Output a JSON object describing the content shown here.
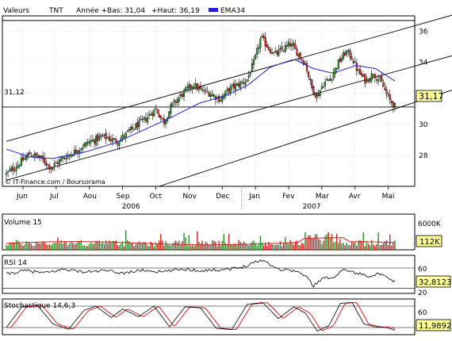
{
  "header": {
    "label_values": "Valeurs",
    "ticker": "TNT",
    "year_low_label": "Année +Bas: 31,04",
    "year_high_label": "+Haut: 36,19",
    "ema_label": "EMA34"
  },
  "colors": {
    "up_candle": "#2e8b2e",
    "down_candle": "#cc2222",
    "ema_line": "#2222cc",
    "volume_avg": "#cc2222",
    "stoch_signal": "#cc2222",
    "grid": "#c8c8c8",
    "price_box_bg": "#ffff99"
  },
  "footer": {
    "credit": "© IT-Finance.com / Boursorama"
  },
  "chart_data": [
    {
      "type": "candlestick",
      "panel": "price",
      "title": "TNT",
      "x_tick_labels": [
        "Jun",
        "Jul",
        "Aou",
        "Sep",
        "Oct",
        "Nov",
        "Dec",
        "Jan",
        "Fev",
        "Mar",
        "Avr",
        "Mai"
      ],
      "x_year_labels": [
        "2006",
        "2007"
      ],
      "y_ticks": [
        "28",
        "30",
        "32",
        "34",
        "36"
      ],
      "ylim": [
        26,
        37
      ],
      "last_price_label": "31,17",
      "level_label": "31,12",
      "level_value": 31.12,
      "close_anchors": [
        {
          "t": 0.0,
          "v": 26.8
        },
        {
          "t": 0.03,
          "v": 27.4
        },
        {
          "t": 0.06,
          "v": 28.1
        },
        {
          "t": 0.09,
          "v": 27.8
        },
        {
          "t": 0.115,
          "v": 27.2
        },
        {
          "t": 0.145,
          "v": 27.8
        },
        {
          "t": 0.18,
          "v": 28.3
        },
        {
          "t": 0.215,
          "v": 28.9
        },
        {
          "t": 0.25,
          "v": 29.2
        },
        {
          "t": 0.285,
          "v": 28.9
        },
        {
          "t": 0.32,
          "v": 29.6
        },
        {
          "t": 0.355,
          "v": 30.3
        },
        {
          "t": 0.385,
          "v": 31.0
        },
        {
          "t": 0.405,
          "v": 30.1
        },
        {
          "t": 0.425,
          "v": 31.2
        },
        {
          "t": 0.455,
          "v": 32.0
        },
        {
          "t": 0.48,
          "v": 32.6
        },
        {
          "t": 0.5,
          "v": 32.2
        },
        {
          "t": 0.525,
          "v": 32.0
        },
        {
          "t": 0.55,
          "v": 31.6
        },
        {
          "t": 0.575,
          "v": 32.3
        },
        {
          "t": 0.6,
          "v": 32.6
        },
        {
          "t": 0.62,
          "v": 32.9
        },
        {
          "t": 0.64,
          "v": 34.2
        },
        {
          "t": 0.655,
          "v": 35.6
        },
        {
          "t": 0.67,
          "v": 35.1
        },
        {
          "t": 0.69,
          "v": 34.5
        },
        {
          "t": 0.71,
          "v": 34.8
        },
        {
          "t": 0.73,
          "v": 35.2
        },
        {
          "t": 0.75,
          "v": 34.6
        },
        {
          "t": 0.77,
          "v": 33.9
        },
        {
          "t": 0.785,
          "v": 32.4
        },
        {
          "t": 0.8,
          "v": 31.8
        },
        {
          "t": 0.815,
          "v": 32.6
        },
        {
          "t": 0.835,
          "v": 33.0
        },
        {
          "t": 0.855,
          "v": 34.0
        },
        {
          "t": 0.875,
          "v": 34.7
        },
        {
          "t": 0.89,
          "v": 34.3
        },
        {
          "t": 0.905,
          "v": 33.4
        },
        {
          "t": 0.925,
          "v": 32.8
        },
        {
          "t": 0.945,
          "v": 33.3
        },
        {
          "t": 0.965,
          "v": 32.7
        },
        {
          "t": 0.985,
          "v": 31.6
        },
        {
          "t": 1.0,
          "v": 31.17
        }
      ],
      "ema_anchors": [
        {
          "t": 0.0,
          "v": 28.4
        },
        {
          "t": 0.06,
          "v": 27.9
        },
        {
          "t": 0.12,
          "v": 27.8
        },
        {
          "t": 0.2,
          "v": 28.2
        },
        {
          "t": 0.28,
          "v": 28.8
        },
        {
          "t": 0.35,
          "v": 29.6
        },
        {
          "t": 0.42,
          "v": 30.4
        },
        {
          "t": 0.5,
          "v": 31.4
        },
        {
          "t": 0.56,
          "v": 31.8
        },
        {
          "t": 0.62,
          "v": 32.5
        },
        {
          "t": 0.68,
          "v": 33.7
        },
        {
          "t": 0.74,
          "v": 34.2
        },
        {
          "t": 0.79,
          "v": 33.6
        },
        {
          "t": 0.84,
          "v": 33.3
        },
        {
          "t": 0.9,
          "v": 33.8
        },
        {
          "t": 0.95,
          "v": 33.6
        },
        {
          "t": 1.0,
          "v": 32.8
        }
      ],
      "channel_lines": [
        {
          "t0": 0.0,
          "v0": 28.9,
          "t1": 1.0,
          "v1": 36.0,
          "extend_to": 1.245
        },
        {
          "t0": 0.0,
          "v0": 26.4,
          "t1": 1.0,
          "v1": 33.4,
          "extend_to": 1.245
        },
        {
          "t0": 0.393,
          "v0": 26.0,
          "t1": 1.0,
          "v1": 31.0,
          "extend_to": 1.245
        }
      ],
      "horizontal_lines": [
        36.7,
        31.12
      ]
    },
    {
      "type": "bar",
      "panel": "volume",
      "title": "Volume 15",
      "y_ticks": [
        "6000K"
      ],
      "ylim": [
        0,
        6500
      ],
      "last_value_label": "112K",
      "avg_level": 1200
    },
    {
      "type": "line",
      "panel": "rsi",
      "title": "RSI 14",
      "y_ticks": [
        "60",
        "20"
      ],
      "ylim": [
        10,
        85
      ],
      "last_value_label": "32,8123",
      "anchors": [
        {
          "t": 0.0,
          "v": 48
        },
        {
          "t": 0.05,
          "v": 55
        },
        {
          "t": 0.1,
          "v": 50
        },
        {
          "t": 0.15,
          "v": 58
        },
        {
          "t": 0.2,
          "v": 52
        },
        {
          "t": 0.25,
          "v": 55
        },
        {
          "t": 0.3,
          "v": 50
        },
        {
          "t": 0.35,
          "v": 56
        },
        {
          "t": 0.4,
          "v": 52
        },
        {
          "t": 0.45,
          "v": 58
        },
        {
          "t": 0.5,
          "v": 55
        },
        {
          "t": 0.55,
          "v": 57
        },
        {
          "t": 0.6,
          "v": 60
        },
        {
          "t": 0.64,
          "v": 72
        },
        {
          "t": 0.66,
          "v": 76
        },
        {
          "t": 0.7,
          "v": 58
        },
        {
          "t": 0.74,
          "v": 55
        },
        {
          "t": 0.77,
          "v": 45
        },
        {
          "t": 0.79,
          "v": 25
        },
        {
          "t": 0.81,
          "v": 38
        },
        {
          "t": 0.84,
          "v": 42
        },
        {
          "t": 0.87,
          "v": 58
        },
        {
          "t": 0.9,
          "v": 50
        },
        {
          "t": 0.93,
          "v": 45
        },
        {
          "t": 0.96,
          "v": 48
        },
        {
          "t": 1.0,
          "v": 32.8
        }
      ]
    },
    {
      "type": "line",
      "panel": "stochastic",
      "title": "Stochastique 14,6,3",
      "y_ticks": [
        "60",
        "20"
      ],
      "ylim": [
        0,
        100
      ],
      "last_value_label": "11,9892",
      "anchors": [
        {
          "t": 0.0,
          "v": 20
        },
        {
          "t": 0.04,
          "v": 78
        },
        {
          "t": 0.08,
          "v": 82
        },
        {
          "t": 0.12,
          "v": 30
        },
        {
          "t": 0.16,
          "v": 15
        },
        {
          "t": 0.2,
          "v": 68
        },
        {
          "t": 0.23,
          "v": 80
        },
        {
          "t": 0.27,
          "v": 48
        },
        {
          "t": 0.3,
          "v": 72
        },
        {
          "t": 0.34,
          "v": 50
        },
        {
          "t": 0.38,
          "v": 80
        },
        {
          "t": 0.42,
          "v": 22
        },
        {
          "t": 0.46,
          "v": 78
        },
        {
          "t": 0.5,
          "v": 75
        },
        {
          "t": 0.54,
          "v": 18
        },
        {
          "t": 0.58,
          "v": 14
        },
        {
          "t": 0.62,
          "v": 85
        },
        {
          "t": 0.66,
          "v": 90
        },
        {
          "t": 0.7,
          "v": 45
        },
        {
          "t": 0.74,
          "v": 78
        },
        {
          "t": 0.77,
          "v": 60
        },
        {
          "t": 0.8,
          "v": 10
        },
        {
          "t": 0.83,
          "v": 25
        },
        {
          "t": 0.86,
          "v": 88
        },
        {
          "t": 0.89,
          "v": 90
        },
        {
          "t": 0.92,
          "v": 30
        },
        {
          "t": 0.95,
          "v": 22
        },
        {
          "t": 0.98,
          "v": 20
        },
        {
          "t": 1.0,
          "v": 12
        }
      ]
    }
  ]
}
